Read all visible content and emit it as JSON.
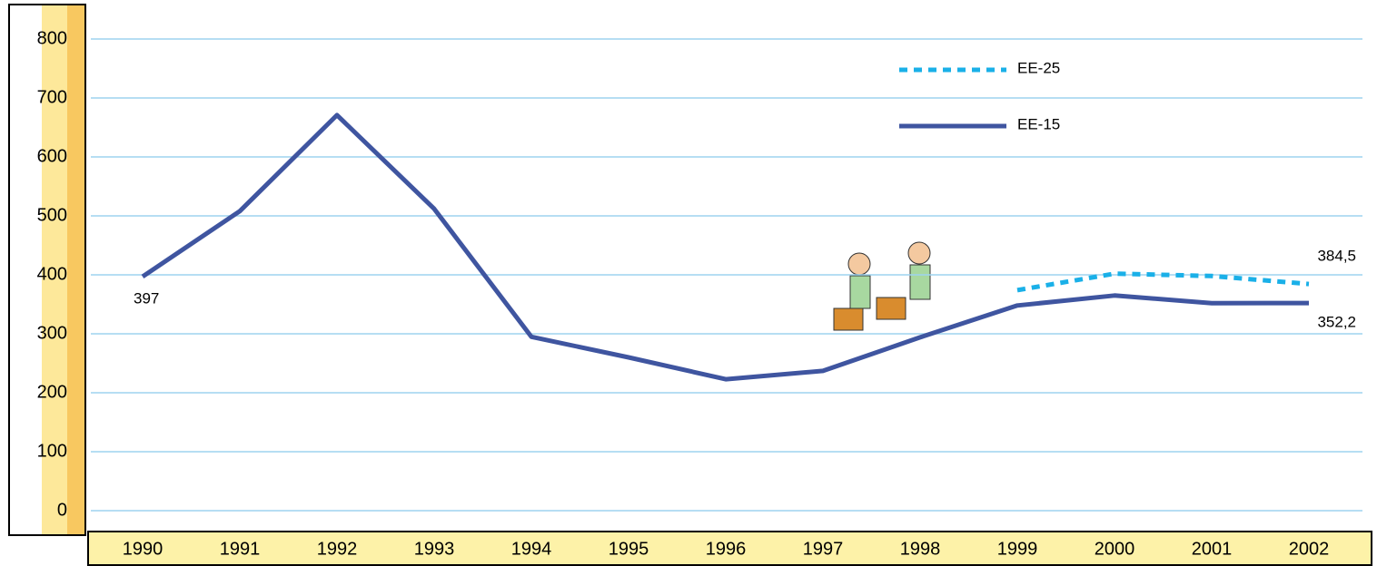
{
  "chart_data": {
    "type": "line",
    "x": [
      "1990",
      "1991",
      "1992",
      "1993",
      "1994",
      "1995",
      "1996",
      "1997",
      "1998",
      "1999",
      "2000",
      "2001",
      "2002"
    ],
    "series": [
      {
        "name": "EE-25",
        "color": "#1ab0e8",
        "dashed": true,
        "values": [
          null,
          null,
          null,
          null,
          null,
          null,
          null,
          null,
          null,
          374,
          402,
          398,
          384.5
        ],
        "value_labels": [
          null,
          null,
          null,
          null,
          null,
          null,
          null,
          null,
          null,
          null,
          null,
          null,
          "384,5"
        ]
      },
      {
        "name": "EE-15",
        "color": "#3f55a0",
        "dashed": false,
        "values": [
          397,
          508,
          671,
          512,
          295,
          260,
          223,
          237,
          294,
          348,
          365,
          352,
          352.2
        ],
        "value_labels": [
          "397",
          null,
          null,
          null,
          null,
          null,
          null,
          null,
          null,
          null,
          null,
          null,
          "352,2"
        ]
      }
    ],
    "ylim": [
      0,
      800
    ],
    "yticks": [
      0,
      100,
      200,
      300,
      400,
      500,
      600,
      700,
      800
    ],
    "grid": true
  }
}
